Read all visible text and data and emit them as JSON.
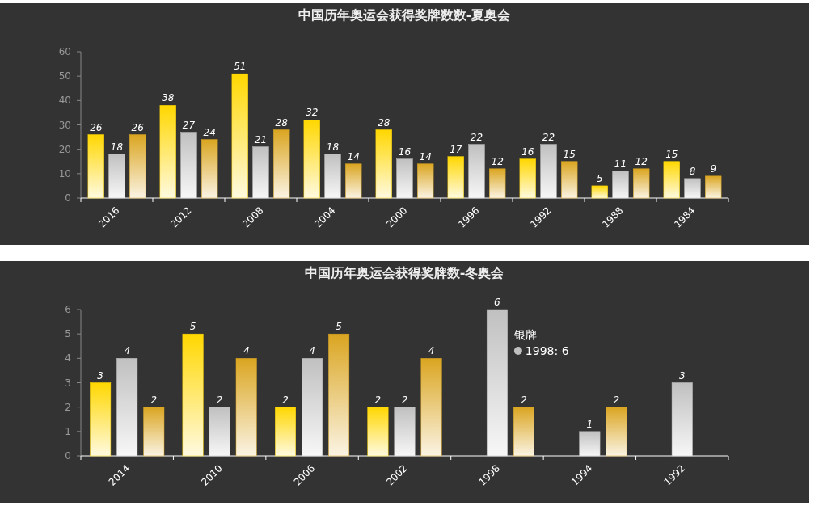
{
  "chart_data": [
    {
      "type": "bar",
      "title": "中国历年奥运会获得奖牌数数-夏奥会",
      "categories": [
        "2016",
        "2012",
        "2008",
        "2004",
        "2000",
        "1996",
        "1992",
        "1988",
        "1984"
      ],
      "series": [
        {
          "color": "#ffd700",
          "values": [
            26,
            38,
            51,
            32,
            28,
            17,
            16,
            5,
            15
          ]
        },
        {
          "color": "#c0c0c0",
          "values": [
            18,
            27,
            21,
            18,
            16,
            22,
            22,
            11,
            8
          ]
        },
        {
          "color": "#daa520",
          "values": [
            26,
            24,
            28,
            14,
            14,
            12,
            15,
            12,
            9
          ]
        }
      ],
      "ylim": [
        0,
        60
      ],
      "yticks": [
        0,
        10,
        20,
        30,
        40,
        50,
        60
      ],
      "data_labels": true
    },
    {
      "type": "bar",
      "title": "中国历年奥运会获得奖牌数-冬奥会",
      "categories": [
        "2014",
        "2010",
        "2006",
        "2002",
        "1998",
        "1994",
        "1992"
      ],
      "series": [
        {
          "color": "#ffd700",
          "values": [
            3,
            5,
            2,
            2,
            null,
            null,
            null
          ]
        },
        {
          "color": "#c0c0c0",
          "values": [
            4,
            2,
            4,
            2,
            6,
            1,
            3
          ]
        },
        {
          "color": "#daa520",
          "values": [
            2,
            4,
            5,
            4,
            2,
            2,
            null
          ]
        }
      ],
      "ylim": [
        0,
        6
      ],
      "yticks": [
        0,
        1,
        2,
        3,
        4,
        5,
        6
      ],
      "data_labels": true,
      "annotations": [
        "银牌",
        "1998: 6"
      ]
    }
  ]
}
